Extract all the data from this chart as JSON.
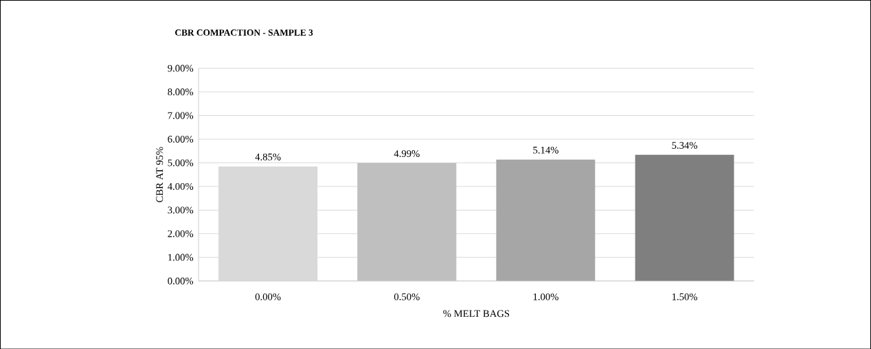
{
  "chart_data": {
    "type": "bar",
    "title": "CBR COMPACTION  - SAMPLE 3",
    "xlabel": "% MELT BAGS",
    "ylabel": "CBR  AT  95%",
    "categories": [
      "0.00%",
      "0.50%",
      "1.00%",
      "1.50%"
    ],
    "values": [
      4.85,
      4.99,
      5.14,
      5.34
    ],
    "value_labels": [
      "4.85%",
      "4.99%",
      "5.14%",
      "5.34%"
    ],
    "colors": [
      "#d9d9d9",
      "#bfbfbf",
      "#a6a6a6",
      "#7f7f7f"
    ],
    "ylim": [
      0,
      9
    ],
    "yticks": [
      {
        "value": 0,
        "label": "0.00%"
      },
      {
        "value": 1,
        "label": "1.00%"
      },
      {
        "value": 2,
        "label": "2.00%"
      },
      {
        "value": 3,
        "label": "3.00%"
      },
      {
        "value": 4,
        "label": "4.00%"
      },
      {
        "value": 5,
        "label": "5.00%"
      },
      {
        "value": 6,
        "label": "6.00%"
      },
      {
        "value": 7,
        "label": "7.00%"
      },
      {
        "value": 8,
        "label": "8.00%"
      },
      {
        "value": 9,
        "label": "9.00%"
      }
    ],
    "grid": "y"
  }
}
